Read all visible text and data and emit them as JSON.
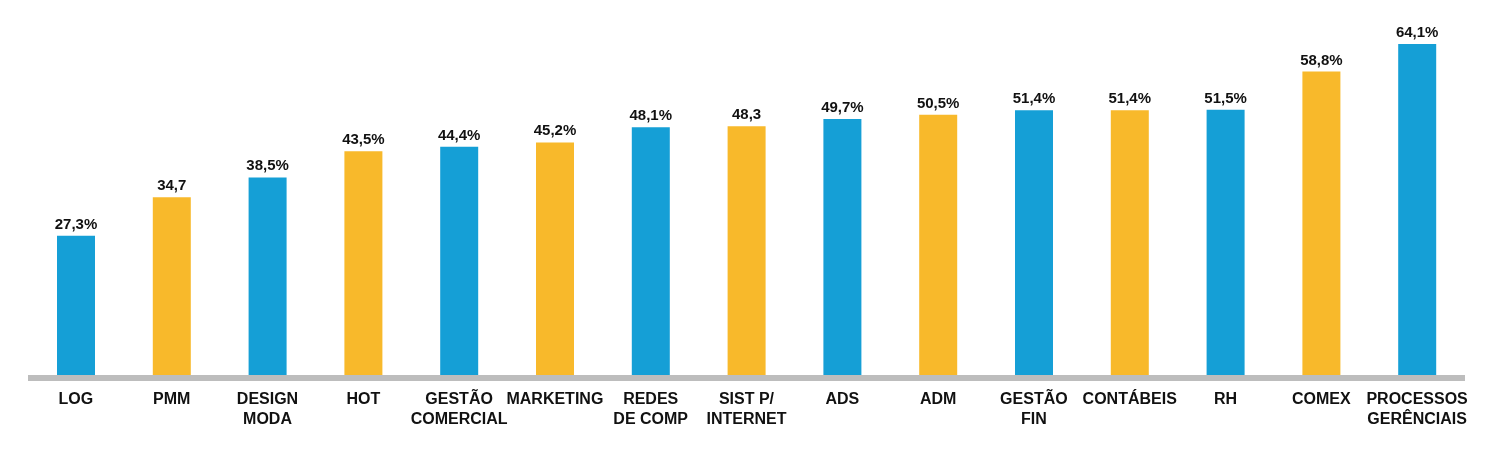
{
  "chart_data": {
    "type": "bar",
    "categories": [
      "LOG",
      "PMM",
      "DESIGN\nMODA",
      "HOT",
      "GESTÃO\nCOMERCIAL",
      "MARKETING",
      "REDES\nDE COMP",
      "SIST P/\nINTERNET",
      "ADS",
      "ADM",
      "GESTÃO\nFIN",
      "CONTÁBEIS",
      "RH",
      "COMEX",
      "PROCESSOS\nGERÊNCIAIS"
    ],
    "values": [
      27.3,
      34.7,
      38.5,
      43.5,
      44.4,
      45.2,
      48.1,
      48.3,
      49.7,
      50.5,
      51.4,
      51.4,
      51.5,
      58.8,
      64.1
    ],
    "colors": [
      "#159fd6",
      "#f8b92b",
      "#159fd6",
      "#f8b92b",
      "#159fd6",
      "#f8b92b",
      "#159fd6",
      "#f8b92b",
      "#159fd6",
      "#f8b92b",
      "#159fd6",
      "#f8b92b",
      "#159fd6",
      "#f8b92b",
      "#159fd6"
    ],
    "value_labels": [
      "27,3%",
      "34,7",
      "38,5%",
      "43,5%",
      "44,4%",
      "45,2%",
      "48,1%",
      "48,3",
      "49,7%",
      "50,5%",
      "51,4%",
      "51,4%",
      "51,5%",
      "58,8%",
      "64,1%"
    ],
    "tick_labels": "x",
    "grid": false,
    "legend": false
  }
}
